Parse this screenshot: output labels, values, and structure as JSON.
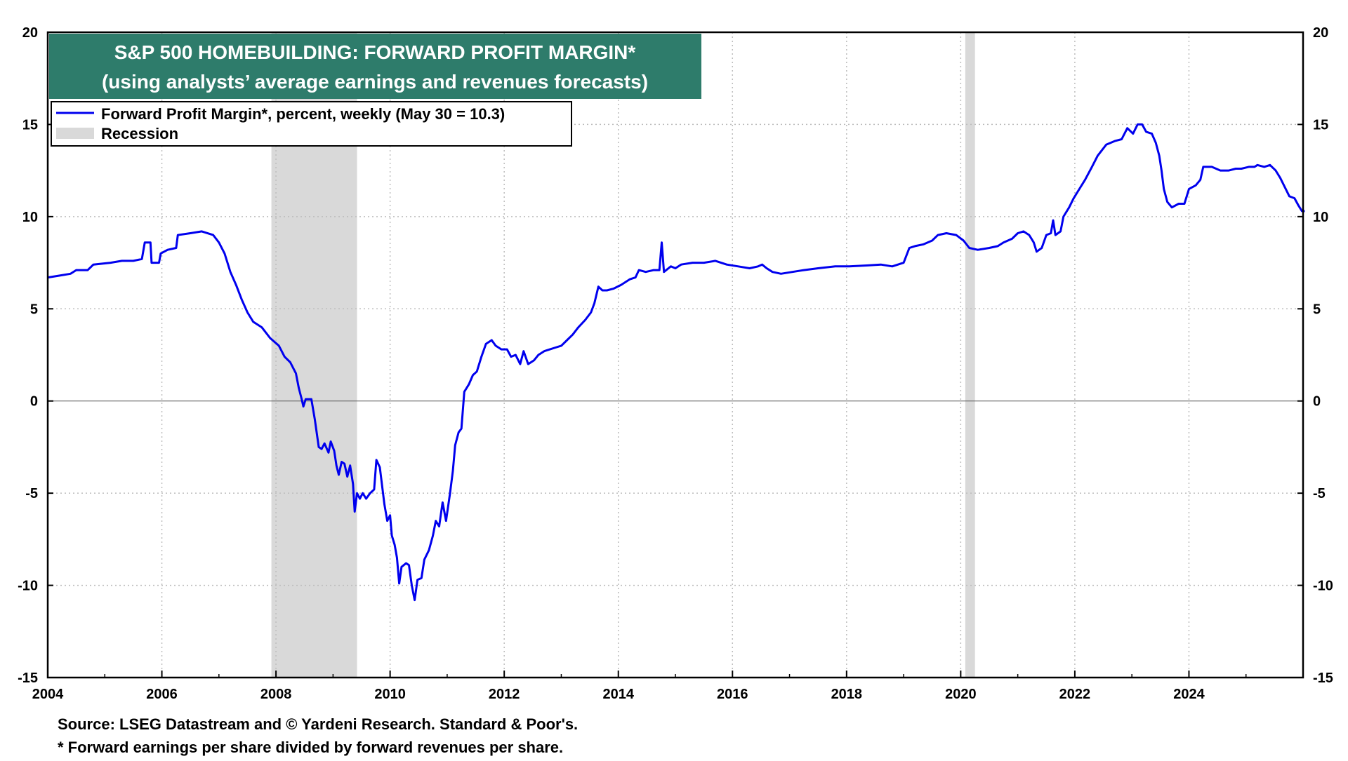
{
  "chart_data": {
    "type": "line",
    "title": "S&P 500 HOMEBUILDING: FORWARD PROFIT MARGIN*",
    "subtitle": "(using analysts’ average earnings and revenues forecasts)",
    "xlim": [
      2004,
      2026
    ],
    "ylim": [
      -15,
      20
    ],
    "x_ticks": [
      "2004",
      "2006",
      "2008",
      "2010",
      "2012",
      "2014",
      "2016",
      "2018",
      "2020",
      "2022",
      "2024"
    ],
    "x_tick_values": [
      2004,
      2006,
      2008,
      2010,
      2012,
      2014,
      2016,
      2018,
      2020,
      2022,
      2024
    ],
    "y_ticks": [
      "20",
      "15",
      "10",
      "5",
      "0",
      "-5",
      "-10",
      "-15"
    ],
    "y_tick_values": [
      20,
      15,
      10,
      5,
      0,
      -5,
      -10,
      -15
    ],
    "grid": true,
    "legend": {
      "placement": "top-left",
      "entries": [
        {
          "label": "Forward Profit Margin*, percent, weekly (May 30 = 10.3)",
          "kind": "line",
          "color": "#0000ee"
        },
        {
          "label": "Recession",
          "kind": "band",
          "color": "#d9d9d9"
        }
      ]
    },
    "recessions": [
      [
        2007.92,
        2009.42
      ],
      [
        2020.08,
        2020.25
      ]
    ],
    "series": [
      {
        "name": "Forward Profit Margin*, percent, weekly (May 30 = 10.3)",
        "color": "#0000ee",
        "points": [
          [
            2004.0,
            6.7
          ],
          [
            2004.2,
            6.8
          ],
          [
            2004.4,
            6.9
          ],
          [
            2004.5,
            7.1
          ],
          [
            2004.7,
            7.1
          ],
          [
            2004.8,
            7.4
          ],
          [
            2005.1,
            7.5
          ],
          [
            2005.3,
            7.6
          ],
          [
            2005.5,
            7.6
          ],
          [
            2005.65,
            7.7
          ],
          [
            2005.7,
            8.6
          ],
          [
            2005.8,
            8.6
          ],
          [
            2005.82,
            7.5
          ],
          [
            2005.95,
            7.5
          ],
          [
            2005.98,
            8.0
          ],
          [
            2006.1,
            8.2
          ],
          [
            2006.25,
            8.3
          ],
          [
            2006.28,
            9.0
          ],
          [
            2006.5,
            9.1
          ],
          [
            2006.7,
            9.2
          ],
          [
            2006.9,
            9.0
          ],
          [
            2007.0,
            8.6
          ],
          [
            2007.1,
            8.0
          ],
          [
            2007.2,
            7.0
          ],
          [
            2007.3,
            6.3
          ],
          [
            2007.4,
            5.5
          ],
          [
            2007.5,
            4.8
          ],
          [
            2007.6,
            4.3
          ],
          [
            2007.75,
            4.0
          ],
          [
            2007.9,
            3.4
          ],
          [
            2008.05,
            3.0
          ],
          [
            2008.15,
            2.4
          ],
          [
            2008.25,
            2.1
          ],
          [
            2008.35,
            1.5
          ],
          [
            2008.4,
            0.7
          ],
          [
            2008.45,
            0.1
          ],
          [
            2008.48,
            -0.3
          ],
          [
            2008.52,
            0.1
          ],
          [
            2008.62,
            0.1
          ],
          [
            2008.68,
            -1.0
          ],
          [
            2008.75,
            -2.5
          ],
          [
            2008.8,
            -2.6
          ],
          [
            2008.85,
            -2.3
          ],
          [
            2008.92,
            -2.8
          ],
          [
            2008.96,
            -2.2
          ],
          [
            2009.02,
            -2.7
          ],
          [
            2009.06,
            -3.5
          ],
          [
            2009.1,
            -4.0
          ],
          [
            2009.15,
            -3.3
          ],
          [
            2009.2,
            -3.4
          ],
          [
            2009.25,
            -4.1
          ],
          [
            2009.3,
            -3.5
          ],
          [
            2009.35,
            -4.5
          ],
          [
            2009.38,
            -6.0
          ],
          [
            2009.42,
            -5.0
          ],
          [
            2009.47,
            -5.3
          ],
          [
            2009.52,
            -5.0
          ],
          [
            2009.58,
            -5.3
          ],
          [
            2009.65,
            -5.0
          ],
          [
            2009.72,
            -4.8
          ],
          [
            2009.76,
            -3.2
          ],
          [
            2009.82,
            -3.6
          ],
          [
            2009.9,
            -5.6
          ],
          [
            2009.95,
            -6.5
          ],
          [
            2010.0,
            -6.2
          ],
          [
            2010.03,
            -7.3
          ],
          [
            2010.08,
            -7.8
          ],
          [
            2010.12,
            -8.5
          ],
          [
            2010.16,
            -9.9
          ],
          [
            2010.2,
            -9.0
          ],
          [
            2010.28,
            -8.8
          ],
          [
            2010.33,
            -8.9
          ],
          [
            2010.38,
            -10.0
          ],
          [
            2010.43,
            -10.8
          ],
          [
            2010.48,
            -9.7
          ],
          [
            2010.55,
            -9.6
          ],
          [
            2010.6,
            -8.6
          ],
          [
            2010.68,
            -8.1
          ],
          [
            2010.75,
            -7.3
          ],
          [
            2010.8,
            -6.5
          ],
          [
            2010.86,
            -6.8
          ],
          [
            2010.92,
            -5.5
          ],
          [
            2010.98,
            -6.5
          ],
          [
            2011.05,
            -5.0
          ],
          [
            2011.1,
            -3.8
          ],
          [
            2011.14,
            -2.4
          ],
          [
            2011.2,
            -1.7
          ],
          [
            2011.25,
            -1.5
          ],
          [
            2011.3,
            0.5
          ],
          [
            2011.38,
            0.9
          ],
          [
            2011.45,
            1.4
          ],
          [
            2011.52,
            1.6
          ],
          [
            2011.6,
            2.4
          ],
          [
            2011.68,
            3.1
          ],
          [
            2011.78,
            3.3
          ],
          [
            2011.85,
            3.0
          ],
          [
            2011.95,
            2.8
          ],
          [
            2012.05,
            2.8
          ],
          [
            2012.12,
            2.4
          ],
          [
            2012.2,
            2.5
          ],
          [
            2012.28,
            2.0
          ],
          [
            2012.34,
            2.7
          ],
          [
            2012.42,
            2.0
          ],
          [
            2012.52,
            2.2
          ],
          [
            2012.6,
            2.5
          ],
          [
            2012.7,
            2.7
          ],
          [
            2012.8,
            2.8
          ],
          [
            2012.9,
            2.9
          ],
          [
            2013.0,
            3.0
          ],
          [
            2013.1,
            3.3
          ],
          [
            2013.2,
            3.6
          ],
          [
            2013.3,
            4.0
          ],
          [
            2013.42,
            4.4
          ],
          [
            2013.52,
            4.8
          ],
          [
            2013.58,
            5.3
          ],
          [
            2013.65,
            6.2
          ],
          [
            2013.72,
            6.0
          ],
          [
            2013.8,
            6.0
          ],
          [
            2013.92,
            6.1
          ],
          [
            2014.05,
            6.3
          ],
          [
            2014.2,
            6.6
          ],
          [
            2014.3,
            6.7
          ],
          [
            2014.36,
            7.1
          ],
          [
            2014.48,
            7.0
          ],
          [
            2014.62,
            7.1
          ],
          [
            2014.72,
            7.1
          ],
          [
            2014.76,
            8.6
          ],
          [
            2014.8,
            7.0
          ],
          [
            2014.92,
            7.3
          ],
          [
            2015.0,
            7.2
          ],
          [
            2015.1,
            7.4
          ],
          [
            2015.3,
            7.5
          ],
          [
            2015.5,
            7.5
          ],
          [
            2015.7,
            7.6
          ],
          [
            2015.9,
            7.4
          ],
          [
            2016.1,
            7.3
          ],
          [
            2016.3,
            7.2
          ],
          [
            2016.45,
            7.3
          ],
          [
            2016.52,
            7.4
          ],
          [
            2016.6,
            7.2
          ],
          [
            2016.7,
            7.0
          ],
          [
            2016.85,
            6.9
          ],
          [
            2017.05,
            7.0
          ],
          [
            2017.25,
            7.1
          ],
          [
            2017.5,
            7.2
          ],
          [
            2017.8,
            7.3
          ],
          [
            2018.05,
            7.3
          ],
          [
            2018.35,
            7.35
          ],
          [
            2018.6,
            7.4
          ],
          [
            2018.8,
            7.3
          ],
          [
            2019.0,
            7.5
          ],
          [
            2019.1,
            8.3
          ],
          [
            2019.2,
            8.4
          ],
          [
            2019.35,
            8.5
          ],
          [
            2019.5,
            8.7
          ],
          [
            2019.6,
            9.0
          ],
          [
            2019.75,
            9.1
          ],
          [
            2019.92,
            9.0
          ],
          [
            2020.05,
            8.7
          ],
          [
            2020.15,
            8.3
          ],
          [
            2020.3,
            8.2
          ],
          [
            2020.5,
            8.3
          ],
          [
            2020.65,
            8.4
          ],
          [
            2020.75,
            8.6
          ],
          [
            2020.9,
            8.8
          ],
          [
            2021.0,
            9.1
          ],
          [
            2021.1,
            9.2
          ],
          [
            2021.2,
            9.0
          ],
          [
            2021.28,
            8.6
          ],
          [
            2021.33,
            8.1
          ],
          [
            2021.42,
            8.3
          ],
          [
            2021.5,
            9.0
          ],
          [
            2021.58,
            9.1
          ],
          [
            2021.62,
            9.8
          ],
          [
            2021.66,
            9.0
          ],
          [
            2021.75,
            9.2
          ],
          [
            2021.8,
            10.0
          ],
          [
            2021.9,
            10.5
          ],
          [
            2021.98,
            11.0
          ],
          [
            2022.08,
            11.5
          ],
          [
            2022.18,
            12.0
          ],
          [
            2022.3,
            12.7
          ],
          [
            2022.4,
            13.3
          ],
          [
            2022.55,
            13.9
          ],
          [
            2022.7,
            14.1
          ],
          [
            2022.82,
            14.2
          ],
          [
            2022.92,
            14.8
          ],
          [
            2023.02,
            14.5
          ],
          [
            2023.1,
            15.0
          ],
          [
            2023.18,
            15.0
          ],
          [
            2023.25,
            14.6
          ],
          [
            2023.35,
            14.5
          ],
          [
            2023.42,
            14.0
          ],
          [
            2023.48,
            13.3
          ],
          [
            2023.52,
            12.5
          ],
          [
            2023.56,
            11.5
          ],
          [
            2023.62,
            10.8
          ],
          [
            2023.7,
            10.5
          ],
          [
            2023.82,
            10.7
          ],
          [
            2023.92,
            10.7
          ],
          [
            2024.0,
            11.5
          ],
          [
            2024.12,
            11.7
          ],
          [
            2024.2,
            12.0
          ],
          [
            2024.25,
            12.7
          ],
          [
            2024.4,
            12.7
          ],
          [
            2024.55,
            12.5
          ],
          [
            2024.7,
            12.5
          ],
          [
            2024.82,
            12.6
          ],
          [
            2024.92,
            12.6
          ],
          [
            2025.05,
            12.7
          ],
          [
            2025.15,
            12.7
          ],
          [
            2025.2,
            12.8
          ],
          [
            2025.32,
            12.7
          ],
          [
            2025.42,
            12.8
          ],
          [
            2025.52,
            12.5
          ],
          [
            2025.6,
            12.1
          ],
          [
            2025.68,
            11.6
          ],
          [
            2025.76,
            11.1
          ],
          [
            2025.85,
            11.0
          ],
          [
            2025.92,
            10.6
          ],
          [
            2025.98,
            10.3
          ],
          [
            2026.03,
            10.3
          ]
        ]
      }
    ]
  },
  "footnotes": {
    "source": "Source: LSEG Datastream and © Yardeni Research. Standard & Poor's.",
    "note": "* Forward earnings per share divided by forward revenues per share."
  }
}
